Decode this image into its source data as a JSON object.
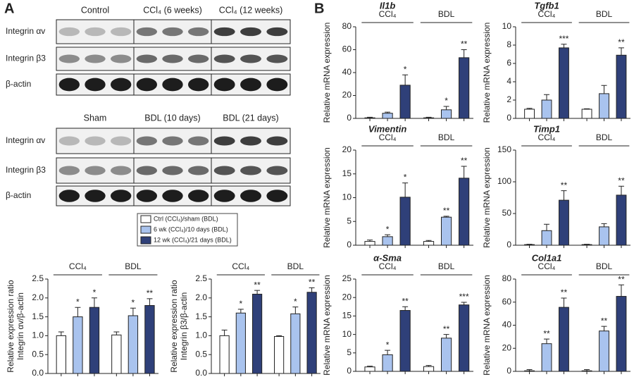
{
  "panel_labels": [
    "A",
    "B"
  ],
  "blots": [
    {
      "columns": [
        "Control",
        "CCl₄ (6 weeks)",
        "CCl₄ (12 weeks)"
      ],
      "rows": [
        "Integrin αv",
        "Integrin β3",
        "β-actin"
      ]
    },
    {
      "columns": [
        "Sham",
        "BDL (10 days)",
        "BDL (21 days)"
      ],
      "rows": [
        "Integrin αv",
        "Integrin β3",
        "β-actin"
      ]
    }
  ],
  "chart_data": [
    {
      "type": "bar",
      "ylabel": [
        "Relative expression ratio",
        "Integrin αv/β-actin"
      ],
      "categories": [
        "CCl₄",
        "BDL"
      ],
      "ylim": [
        0,
        2.5
      ],
      "yticks": [
        {
          "value": 0,
          "label": "0.0"
        },
        0.5,
        {
          "value": 1,
          "label": "1.0"
        },
        1.5,
        {
          "value": 2,
          "label": "2.0"
        },
        2.5
      ],
      "series": [
        {
          "name": "Ctrl (CCl₄)/sham (BDL)",
          "color": "#ffffff",
          "values": [
            1.0,
            1.02
          ],
          "errors": [
            0.1,
            0.08
          ],
          "sig": [
            null,
            null
          ]
        },
        {
          "name": "6 wk (CCl₄)/10 days (BDL)",
          "color": "#a9c3ee",
          "values": [
            1.5,
            1.53
          ],
          "errors": [
            0.25,
            0.2
          ],
          "sig": [
            "*",
            "*"
          ]
        },
        {
          "name": "12 wk (CCl₄)/21 days (BDL)",
          "color": "#2f4079",
          "values": [
            1.75,
            1.8
          ],
          "errors": [
            0.25,
            0.18
          ],
          "sig": [
            "*",
            "**"
          ]
        }
      ]
    },
    {
      "type": "bar",
      "ylabel": [
        "Relative expression ratio",
        "Integrin β3/β-actin"
      ],
      "categories": [
        "CCl₄",
        "BDL"
      ],
      "ylim": [
        0,
        2.5
      ],
      "yticks": [
        {
          "value": 0,
          "label": "0.0"
        },
        0.5,
        {
          "value": 1,
          "label": "1.0"
        },
        1.5,
        {
          "value": 2,
          "label": "2.0"
        },
        2.5
      ],
      "series": [
        {
          "color": "#ffffff",
          "values": [
            1.0,
            0.98
          ],
          "errors": [
            0.15,
            0.02
          ],
          "sig": [
            null,
            null
          ]
        },
        {
          "color": "#a9c3ee",
          "values": [
            1.6,
            1.58
          ],
          "errors": [
            0.1,
            0.18
          ],
          "sig": [
            "*",
            "*"
          ]
        },
        {
          "color": "#2f4079",
          "values": [
            2.1,
            2.15
          ],
          "errors": [
            0.1,
            0.12
          ],
          "sig": [
            "**",
            "**"
          ]
        }
      ]
    },
    {
      "type": "bar",
      "title": "Il1b",
      "ylabel": "Relative mRNA expression",
      "categories": [
        "CCl₄",
        "BDL"
      ],
      "ylim": [
        0,
        80
      ],
      "yticks": [
        0,
        20,
        40,
        60,
        80
      ],
      "series": [
        {
          "color": "#ffffff",
          "values": [
            0.5,
            0.5
          ],
          "errors": [
            0.5,
            0.5
          ],
          "sig": [
            null,
            null
          ]
        },
        {
          "color": "#a9c3ee",
          "values": [
            4.5,
            7.5
          ],
          "errors": [
            1,
            3
          ],
          "sig": [
            null,
            "*"
          ]
        },
        {
          "color": "#2f4079",
          "values": [
            29,
            53
          ],
          "errors": [
            9,
            7
          ],
          "sig": [
            "*",
            "**"
          ]
        }
      ]
    },
    {
      "type": "bar",
      "title": "Tgfb1",
      "ylabel": "Relative mRNA expression",
      "categories": [
        "CCl₄",
        "BDL"
      ],
      "ylim": [
        0,
        10
      ],
      "yticks": [
        0,
        2,
        4,
        6,
        8,
        10
      ],
      "series": [
        {
          "color": "#ffffff",
          "values": [
            1,
            1
          ],
          "errors": [
            0.1,
            0.05
          ],
          "sig": [
            null,
            null
          ]
        },
        {
          "color": "#a9c3ee",
          "values": [
            2,
            2.7
          ],
          "errors": [
            0.6,
            0.9
          ],
          "sig": [
            null,
            null
          ]
        },
        {
          "color": "#2f4079",
          "values": [
            7.7,
            6.9
          ],
          "errors": [
            0.4,
            0.8
          ],
          "sig": [
            "***",
            "**"
          ]
        }
      ]
    },
    {
      "type": "bar",
      "title": "Vimentin",
      "ylabel": "Relative mRNA expression",
      "categories": [
        "CCl₄",
        "BDL"
      ],
      "ylim": [
        0,
        20
      ],
      "yticks": [
        0,
        5,
        10,
        15,
        20
      ],
      "series": [
        {
          "color": "#ffffff",
          "values": [
            0.8,
            0.8
          ],
          "errors": [
            0.3,
            0.2
          ],
          "sig": [
            null,
            null
          ]
        },
        {
          "color": "#a9c3ee",
          "values": [
            1.8,
            5.9
          ],
          "errors": [
            0.4,
            0.2
          ],
          "sig": [
            "*",
            "**"
          ]
        },
        {
          "color": "#2f4079",
          "values": [
            10.1,
            14.1
          ],
          "errors": [
            3,
            2.5
          ],
          "sig": [
            "*",
            "**"
          ]
        }
      ]
    },
    {
      "type": "bar",
      "title": "Timp1",
      "ylabel": "Relative mRNA expression",
      "categories": [
        "CCl₄",
        "BDL"
      ],
      "ylim": [
        0,
        150
      ],
      "yticks": [
        0,
        50,
        100,
        150
      ],
      "series": [
        {
          "color": "#ffffff",
          "values": [
            1,
            1
          ],
          "errors": [
            0.5,
            0.5
          ],
          "sig": [
            null,
            null
          ]
        },
        {
          "color": "#a9c3ee",
          "values": [
            23,
            29
          ],
          "errors": [
            10,
            5
          ],
          "sig": [
            null,
            null
          ]
        },
        {
          "color": "#2f4079",
          "values": [
            71,
            79
          ],
          "errors": [
            15,
            14
          ],
          "sig": [
            "**",
            "**"
          ]
        }
      ]
    },
    {
      "type": "bar",
      "title": "α-Sma",
      "ylabel": "Relative mRNA expression",
      "categories": [
        "CCl₄",
        "BDL"
      ],
      "ylim": [
        0,
        25
      ],
      "yticks": [
        0,
        5,
        10,
        15,
        20,
        25
      ],
      "series": [
        {
          "color": "#ffffff",
          "values": [
            1.2,
            1.3
          ],
          "errors": [
            0.2,
            0.3
          ],
          "sig": [
            null,
            null
          ]
        },
        {
          "color": "#a9c3ee",
          "values": [
            4.5,
            9
          ],
          "errors": [
            1.2,
            1
          ],
          "sig": [
            "*",
            "**"
          ]
        },
        {
          "color": "#2f4079",
          "values": [
            16.5,
            18
          ],
          "errors": [
            1,
            0.7
          ],
          "sig": [
            "**",
            "***"
          ]
        }
      ]
    },
    {
      "type": "bar",
      "title": "Col1a1",
      "ylabel": "Relative mRNA expression",
      "categories": [
        "CCl₄",
        "BDL"
      ],
      "ylim": [
        0,
        80
      ],
      "yticks": [
        0,
        20,
        40,
        60,
        80
      ],
      "series": [
        {
          "color": "#ffffff",
          "values": [
            0.5,
            0.5
          ],
          "errors": [
            1,
            1
          ],
          "sig": [
            null,
            null
          ]
        },
        {
          "color": "#a9c3ee",
          "values": [
            24,
            35
          ],
          "errors": [
            4,
            4
          ],
          "sig": [
            "**",
            "**"
          ]
        },
        {
          "color": "#2f4079",
          "values": [
            55.5,
            65
          ],
          "errors": [
            8,
            10
          ],
          "sig": [
            "**",
            "**"
          ]
        }
      ]
    }
  ]
}
